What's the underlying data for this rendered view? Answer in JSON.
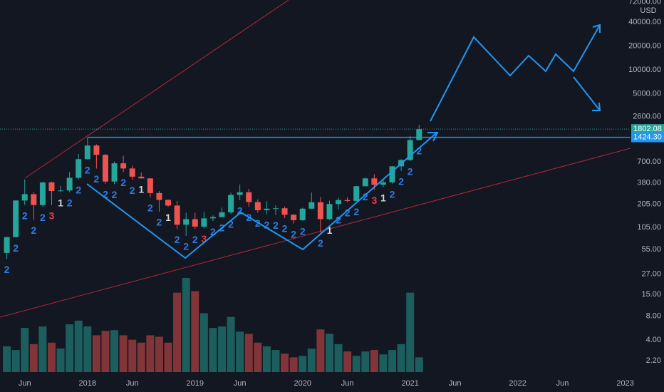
{
  "chart_data": {
    "type": "candlestick",
    "currency": "USD",
    "log_scale": true,
    "grid": false,
    "up_color": "#26a69a",
    "down_color": "#ef5350",
    "x": [
      "2017-04",
      "2017-05",
      "2017-06",
      "2017-07",
      "2017-08",
      "2017-09",
      "2017-10",
      "2017-11",
      "2017-12",
      "2018-01",
      "2018-02",
      "2018-03",
      "2018-04",
      "2018-05",
      "2018-06",
      "2018-07",
      "2018-08",
      "2018-09",
      "2018-10",
      "2018-11",
      "2018-12",
      "2019-01",
      "2019-02",
      "2019-03",
      "2019-04",
      "2019-05",
      "2019-06",
      "2019-07",
      "2019-08",
      "2019-09",
      "2019-10",
      "2019-11",
      "2019-12",
      "2020-01",
      "2020-02",
      "2020-03",
      "2020-04",
      "2020-05",
      "2020-06",
      "2020-07",
      "2020-08",
      "2020-09",
      "2020-10",
      "2020-11",
      "2020-12",
      "2021-01",
      "2021-02"
    ],
    "open": [
      50,
      79,
      228,
      274,
      200,
      385,
      300,
      305,
      440,
      756,
      1120,
      855,
      395,
      670,
      577,
      455,
      433,
      283,
      232,
      197,
      113,
      133,
      107,
      136,
      141,
      162,
      268,
      290,
      218,
      172,
      180,
      182,
      151,
      129,
      180,
      217,
      133,
      206,
      231,
      225,
      345,
      433,
      360,
      386,
      614,
      737,
      1314
    ],
    "high": [
      80,
      230,
      420,
      290,
      390,
      395,
      350,
      520,
      880,
      1420,
      1160,
      880,
      705,
      835,
      625,
      515,
      435,
      300,
      235,
      225,
      160,
      160,
      165,
      148,
      186,
      285,
      362,
      320,
      236,
      224,
      198,
      192,
      154,
      185,
      287,
      253,
      227,
      247,
      253,
      348,
      445,
      488,
      420,
      620,
      755,
      1475,
      2040
    ],
    "low": [
      42,
      78,
      200,
      130,
      190,
      200,
      290,
      290,
      420,
      750,
      575,
      370,
      365,
      520,
      415,
      430,
      250,
      165,
      190,
      100,
      82,
      100,
      102,
      126,
      140,
      155,
      230,
      190,
      160,
      153,
      151,
      137,
      117,
      127,
      179,
      90,
      130,
      176,
      216,
      224,
      343,
      310,
      335,
      371,
      536,
      715,
      1300
    ],
    "close": [
      79,
      228,
      274,
      200,
      385,
      300,
      305,
      440,
      756,
      1120,
      855,
      395,
      670,
      577,
      455,
      433,
      283,
      232,
      197,
      113,
      133,
      107,
      136,
      141,
      162,
      268,
      290,
      218,
      172,
      180,
      182,
      151,
      129,
      180,
      217,
      133,
      206,
      231,
      225,
      345,
      433,
      360,
      386,
      614,
      737,
      1314,
      1802.08
    ],
    "volume": [
      35,
      30,
      60,
      38,
      62,
      40,
      32,
      65,
      70,
      62,
      50,
      56,
      57,
      50,
      44,
      40,
      50,
      48,
      40,
      108,
      128,
      110,
      80,
      60,
      62,
      75,
      55,
      52,
      40,
      35,
      30,
      25,
      20,
      22,
      32,
      58,
      52,
      38,
      28,
      22,
      28,
      30,
      24,
      30,
      38,
      108,
      20
    ],
    "td_counts": [
      2,
      2,
      2,
      2,
      2,
      3,
      1,
      2,
      2,
      2,
      2,
      2,
      2,
      2,
      2,
      1,
      2,
      2,
      1,
      2,
      2,
      2,
      3,
      2,
      2,
      2,
      2,
      2,
      2,
      2,
      2,
      2,
      2,
      2,
      null,
      2,
      1,
      2,
      2,
      2,
      2,
      3,
      1,
      2,
      2,
      2,
      2
    ],
    "xlim": [
      "2017-03",
      "2023-02"
    ],
    "xticks": [
      {
        "value": "2017-06",
        "label": "Jun"
      },
      {
        "value": "2018-01",
        "label": "2018"
      },
      {
        "value": "2018-06",
        "label": "Jun"
      },
      {
        "value": "2019-01",
        "label": "2019"
      },
      {
        "value": "2019-06",
        "label": "Jun"
      },
      {
        "value": "2020-01",
        "label": "2020"
      },
      {
        "value": "2020-06",
        "label": "Jun"
      },
      {
        "value": "2021-01",
        "label": "2021"
      },
      {
        "value": "2021-06",
        "label": "Jun"
      },
      {
        "value": "2022-01",
        "label": "2022"
      },
      {
        "value": "2022-06",
        "label": "Jun"
      },
      {
        "value": "2023-01",
        "label": "2023"
      }
    ],
    "ylim": [
      1.49,
      75900
    ],
    "yticks": [
      {
        "value": 2.2,
        "label": "2.20"
      },
      {
        "value": 4,
        "label": "4.00"
      },
      {
        "value": 8,
        "label": "8.00"
      },
      {
        "value": 15,
        "label": "15.00"
      },
      {
        "value": 27,
        "label": "27.00"
      },
      {
        "value": 55,
        "label": "55.00"
      },
      {
        "value": 105,
        "label": "105.00"
      },
      {
        "value": 205,
        "label": "205.00"
      },
      {
        "value": 380,
        "label": "380.00"
      },
      {
        "value": 700,
        "label": "700.00"
      },
      {
        "value": 2600,
        "label": "2600.00"
      },
      {
        "value": 5000,
        "label": "5000.00"
      },
      {
        "value": 10000,
        "label": "10000.00"
      },
      {
        "value": 20000,
        "label": "20000.00"
      },
      {
        "value": 40000,
        "label": "40000.00"
      },
      {
        "value": 72000,
        "label": "72000.00"
      }
    ],
    "price_lines": [
      {
        "value": 1802.08,
        "label": "1802.08",
        "color": "#26a69a"
      },
      {
        "value": 1424.3,
        "label": "1424.30",
        "color": "#2196f3"
      }
    ]
  }
}
